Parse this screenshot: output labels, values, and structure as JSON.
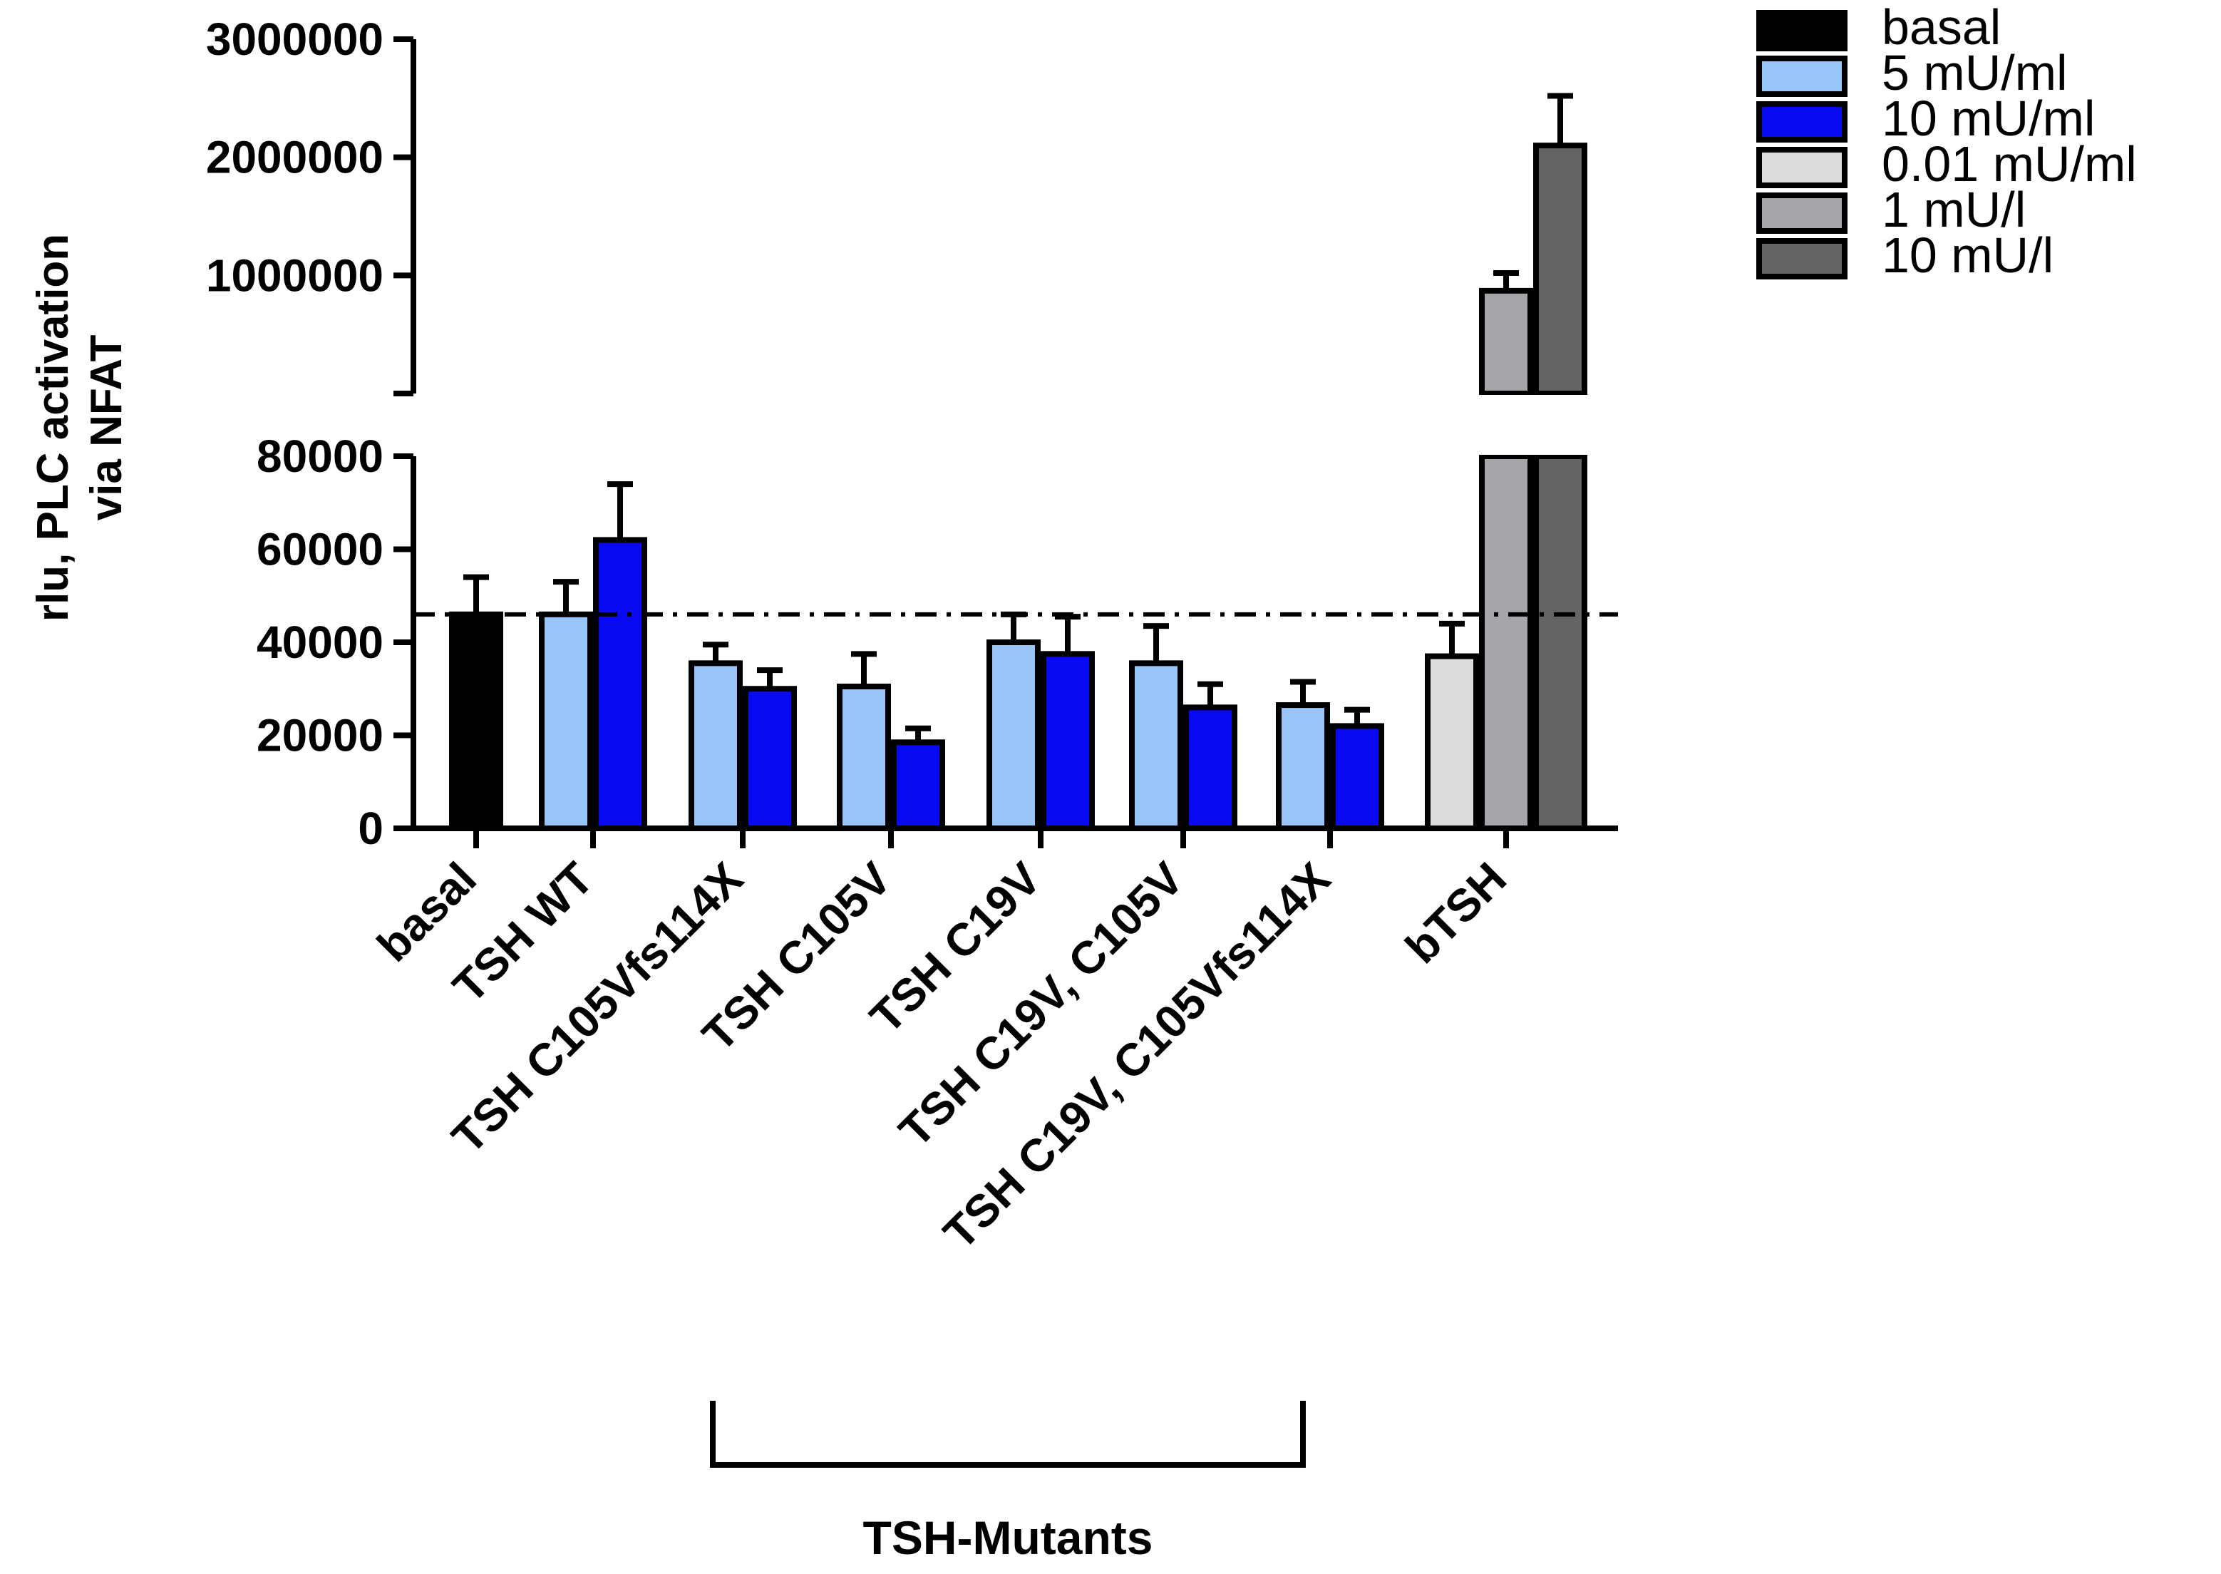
{
  "chart_data": {
    "type": "bar",
    "title": "",
    "ylabel_lines": [
      "rlu, PLC activation",
      "via NFAT"
    ],
    "xlabel": "",
    "axis_break": {
      "lower_range": [
        0,
        80000
      ],
      "upper_range": [
        0,
        3000000
      ]
    },
    "lower_ticks": [
      {
        "value": 0,
        "label": "0"
      },
      {
        "value": 20000,
        "label": "20000"
      },
      {
        "value": 40000,
        "label": "40000"
      },
      {
        "value": 60000,
        "label": "60000"
      },
      {
        "value": 80000,
        "label": "80000"
      }
    ],
    "upper_ticks": [
      {
        "value": 1000000,
        "label": "1000000"
      },
      {
        "value": 2000000,
        "label": "2000000"
      },
      {
        "value": 3000000,
        "label": "3000000"
      }
    ],
    "baseline_reference": 46000,
    "legend_position": "top-right",
    "series": [
      {
        "name": "basal",
        "color": "#000000"
      },
      {
        "name": "5 mU/ml",
        "color": "#99c4f7"
      },
      {
        "name": "10 mU/ml",
        "color": "#0a0af2"
      },
      {
        "name": "0.01 mU/ml",
        "color": "#dcdcdc"
      },
      {
        "name": "1 mU/l",
        "color": "#a5a5aa"
      },
      {
        "name": "10 mU/l",
        "color": "#646464"
      }
    ],
    "categories": [
      {
        "label": "basal",
        "bars": [
          {
            "series": 0,
            "value": 46000,
            "error": 8000
          }
        ]
      },
      {
        "label": "TSH WT",
        "bars": [
          {
            "series": 1,
            "value": 46000,
            "error": 7000
          },
          {
            "series": 2,
            "value": 62000,
            "error": 12000
          }
        ]
      },
      {
        "label": "TSH C105Vfs114X",
        "bars": [
          {
            "series": 1,
            "value": 35500,
            "error": 4000
          },
          {
            "series": 2,
            "value": 30000,
            "error": 4000
          }
        ]
      },
      {
        "label": "TSH C105V",
        "bars": [
          {
            "series": 1,
            "value": 30500,
            "error": 7000
          },
          {
            "series": 2,
            "value": 18500,
            "error": 3000
          }
        ]
      },
      {
        "label": "TSH C19V",
        "bars": [
          {
            "series": 1,
            "value": 40000,
            "error": 6000
          },
          {
            "series": 2,
            "value": 37500,
            "error": 8000
          }
        ]
      },
      {
        "label": "TSH C19V, C105V",
        "bars": [
          {
            "series": 1,
            "value": 35500,
            "error": 8000
          },
          {
            "series": 2,
            "value": 26000,
            "error": 5000
          }
        ]
      },
      {
        "label": "TSH C19V, C105Vfs114X",
        "bars": [
          {
            "series": 1,
            "value": 26500,
            "error": 5000
          },
          {
            "series": 2,
            "value": 22000,
            "error": 3500
          }
        ]
      },
      {
        "label": "bTSH",
        "bars": [
          {
            "series": 3,
            "value": 37000,
            "error": 7000
          },
          {
            "series": 4,
            "value": 870000,
            "error": 150000
          },
          {
            "series": 5,
            "value": 2100000,
            "error": 420000
          }
        ]
      }
    ],
    "bracket": {
      "label": "TSH-Mutants",
      "from_category": 2,
      "to_category": 6
    }
  }
}
